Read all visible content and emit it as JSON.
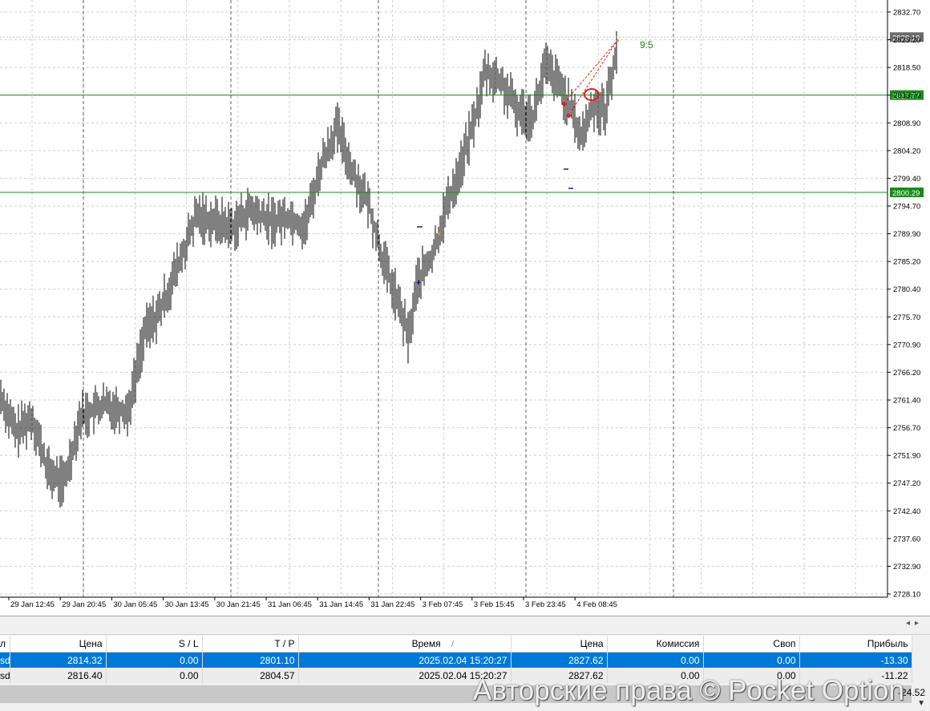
{
  "chart": {
    "price_labels": [
      "2832.70",
      "2823.20",
      "2818.50",
      "2813.70",
      "2808.90",
      "2804.20",
      "2799.40",
      "2794.70",
      "2789.90",
      "2785.20",
      "2780.40",
      "2775.70",
      "2770.90",
      "2766.20",
      "2761.40",
      "2756.70",
      "2751.90",
      "2747.20",
      "2742.40",
      "2737.60",
      "2732.90",
      "2728.10"
    ],
    "time_labels": [
      "29 Jan 12:45",
      "29 Jan 20:45",
      "30 Jan 05:45",
      "30 Jan 13:45",
      "30 Jan 21:45",
      "31 Jan 06:45",
      "31 Jan 14:45",
      "31 Jan 22:45",
      "3 Feb 07:45",
      "3 Feb 15:45",
      "3 Feb 23:45",
      "4 Feb 08:45"
    ],
    "current_price": "2828.19",
    "level_upper": "2817.77",
    "level_lower": "2800.29",
    "annotation": "9:5",
    "colors": {
      "level_line": "#1a8a1a",
      "level_tag_bg": "#1a8a1a",
      "current_tag_bg": "#6b6b6b",
      "annotation": "#1a8a1a",
      "trade_line": "#e02020",
      "candles": "#000000"
    }
  },
  "terminal": {
    "columns": [
      "л",
      "Цена",
      "S / L",
      "T / P",
      "Время",
      "Цена",
      "Комиссия",
      "Своп",
      "Прибыль"
    ],
    "sort_mark": "/",
    "rows": [
      {
        "symbol": "sd",
        "open_price": "2814.32",
        "sl": "0.00",
        "tp": "2801.10",
        "time": "2025.02.04 15:20:27",
        "price": "2827.62",
        "commission": "0.00",
        "swap": "0.00",
        "profit": "-13.30"
      },
      {
        "symbol": "sd",
        "open_price": "2816.40",
        "sl": "0.00",
        "tp": "2804.57",
        "time": "2025.02.04 15:20:27",
        "price": "2827.62",
        "commission": "0.00",
        "swap": "0.00",
        "profit": "-11.22"
      }
    ],
    "total_profit": "-24.52",
    "nav_left": "◂",
    "nav_right": "▸",
    "scroll_down": "▼"
  },
  "watermark": "Авторские права © Pocket Option"
}
